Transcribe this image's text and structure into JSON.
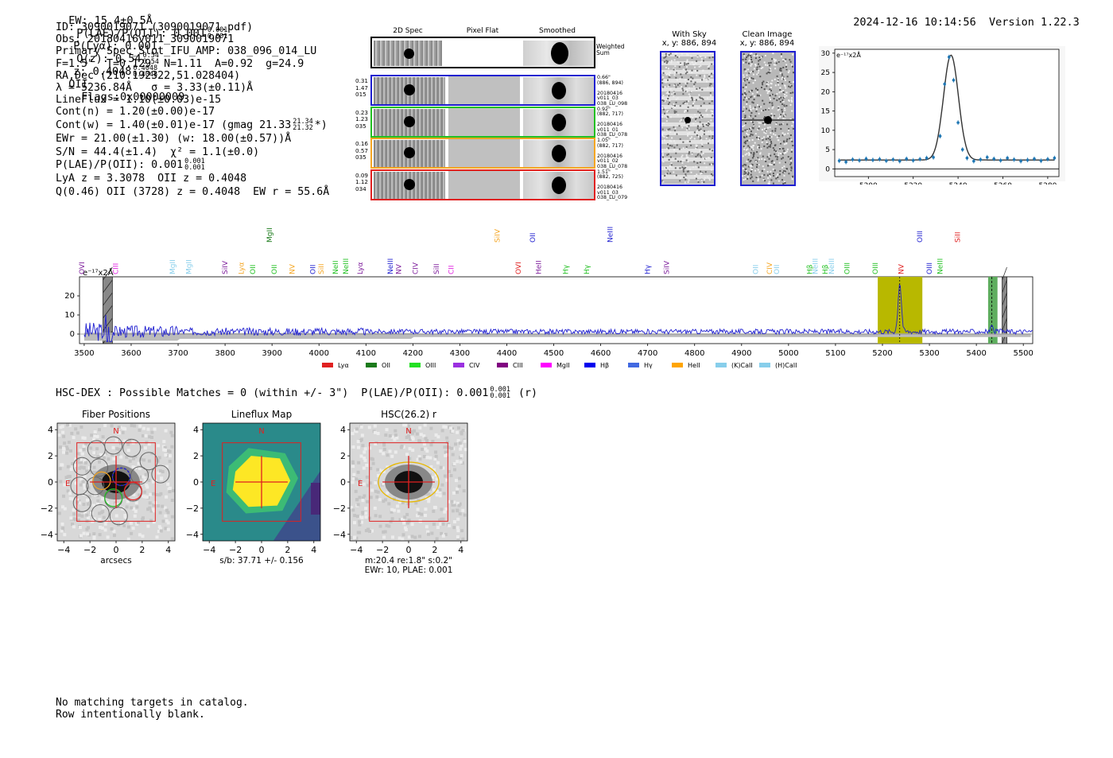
{
  "header": {
    "ew": "EW: 15.4±0.5Å",
    "plae_label": "P(LAE)/P(OII): 0.001",
    "plae_sup": "0.001",
    "plae_sub": "0.001",
    "plya": "P(Lyα): 0.001",
    "qz_label": "Q(z): 0.54",
    "qz_sup": "0.54",
    "qz_sub": "0.54",
    "z_label": "z: 0.4048",
    "z_sup": "0.4048",
    "z_sub": "0.4048",
    "z_line": "OII",
    "flags": "Flags:0x00000009",
    "timestamp": "2024-12-16 10:14:56",
    "version": "Version 1.22.3"
  },
  "info": {
    "id": "ID: 3090019071 (3090019071.pdf)",
    "obs": "Obs: 20180416v011_3090019071",
    "primary": "Primary Spec_Slot_IFU_AMP: 038_096_014_LU",
    "fiber": "F=1.5\"  T=0.129  N=1.11  A=0.92  g=24.9",
    "radec": "RA,Dec (210.192322,51.028404)",
    "lambda": "λ = 5236.84Å   σ = 3.33(±0.11)Å",
    "lineflux": "LineFlux = 1.10(±0.03)e-15",
    "contn": "Cont(n) = 1.20(±0.00)e-17",
    "contw": "Cont(w) = 1.40(±0.01)e-17 (gmag 21.33",
    "contw_sup": "21.34",
    "contw_sub": "21.32",
    "contw_end": "*)",
    "ewr": "EWr = 21.00(±1.30) (w: 18.00(±0.57))Å",
    "sn": "S/N = 44.4(±1.4)  χ² = 1.1(±0.0)",
    "plae": "P(LAE)/P(OII): 0.001",
    "plae_sup": "0.001",
    "plae_sub": "0.001",
    "lya": "LyA z = 3.3078  OII z = 0.4048",
    "q": "Q(0.46) OII (3728) z = 0.4048  EW r = 55.6Å"
  },
  "cutouts": {
    "col_titles": [
      "2D Spec",
      "Pixel Flat",
      "Smoothed"
    ],
    "weighted_label": "Weighted\nSum",
    "rows": [
      {
        "left": "0.31\n1.47\n015",
        "right": "0.66\"\n(886, 894)\n\n20180416\nv011_03\n038_LU_098",
        "color": "#1f1fd0"
      },
      {
        "left": "0.23\n1.23\n035",
        "right": "0.92\"\n(882, 717)\n\n20180416\nv011_01\n038_LU_078",
        "color": "#22c022"
      },
      {
        "left": "0.16\n0.57\n035",
        "right": "1.05\"\n(882, 717)\n\n20180416\nv011_02\n038_LU_078",
        "color": "#f5a623"
      },
      {
        "left": "0.09\n1.12\n034",
        "right": "1.51\"\n(882, 725)\n\n20180416\nv011_03\n038_LU_079",
        "color": "#e02020"
      }
    ]
  },
  "sky": {
    "with_sky_title": "With Sky",
    "with_sky_xy": "x, y: 886, 894",
    "clean_title": "Clean Image",
    "clean_xy": "x, y: 886, 894"
  },
  "fit_chart": {
    "ylabel": "e⁻¹⁷x2Å",
    "xticks": [
      "5200",
      "5220",
      "5240",
      "5260",
      "5280"
    ],
    "yticks": [
      "30",
      "25",
      "20",
      "15",
      "10",
      "5",
      "0"
    ]
  },
  "spectrum": {
    "ylabel": "e⁻¹⁷x2Å",
    "xticks": [
      "3500",
      "3600",
      "3700",
      "3800",
      "3900",
      "4000",
      "4100",
      "4200",
      "4300",
      "4400",
      "4500",
      "4600",
      "4700",
      "4800",
      "4900",
      "5000",
      "5100",
      "5200",
      "5300",
      "5400",
      "5500"
    ],
    "yticks": [
      "20",
      "10",
      "0"
    ],
    "line_labels": [
      {
        "t": "OVI",
        "c": "#7e1e9c"
      },
      {
        "t": "CIII",
        "c": "#e020e0"
      },
      {
        "t": "MgII",
        "c": "#87ceeb"
      },
      {
        "t": "MgII",
        "c": "#87ceeb"
      },
      {
        "t": "SiIV",
        "c": "#7e1e9c"
      },
      {
        "t": "Lyα",
        "c": "#f5a623"
      },
      {
        "t": "OII",
        "c": "#22c022"
      },
      {
        "t": "MgII",
        "c": "#1a7a1a"
      },
      {
        "t": "OII",
        "c": "#22c022"
      },
      {
        "t": "NV",
        "c": "#f5a623"
      },
      {
        "t": "OII",
        "c": "#1f1fd0"
      },
      {
        "t": "SiII",
        "c": "#f5a623"
      },
      {
        "t": "NeII",
        "c": "#22c022"
      },
      {
        "t": "NeIII",
        "c": "#22c022"
      },
      {
        "t": "Lyα",
        "c": "#7e1e9c"
      },
      {
        "t": "NeIII",
        "c": "#1f1fd0"
      },
      {
        "t": "NV",
        "c": "#7e1e9c"
      },
      {
        "t": "CIV",
        "c": "#7e1e9c"
      },
      {
        "t": "SiII",
        "c": "#7e1e9c"
      },
      {
        "t": "CII",
        "c": "#e020e0"
      },
      {
        "t": "SiIV",
        "c": "#f5a623"
      },
      {
        "t": "OVI",
        "c": "#e02020"
      },
      {
        "t": "OII",
        "c": "#1f1fd0"
      },
      {
        "t": "HeII",
        "c": "#7e1e9c"
      },
      {
        "t": "Hγ",
        "c": "#22c022"
      },
      {
        "t": "Hγ",
        "c": "#22c022"
      },
      {
        "t": "NeIII",
        "c": "#1f1fd0"
      },
      {
        "t": "Hγ",
        "c": "#1f1fd0"
      },
      {
        "t": "SiIV",
        "c": "#7e1e9c"
      },
      {
        "t": "OII",
        "c": "#87ceeb"
      },
      {
        "t": "CIV",
        "c": "#f5a623"
      },
      {
        "t": "OII",
        "c": "#87ceeb"
      },
      {
        "t": "Hβ",
        "c": "#22c022"
      },
      {
        "t": "NeIII",
        "c": "#87ceeb"
      },
      {
        "t": "Hβ",
        "c": "#22c022"
      },
      {
        "t": "NeIII",
        "c": "#87ceeb"
      },
      {
        "t": "OIII",
        "c": "#22c022"
      },
      {
        "t": "OIII",
        "c": "#22c022"
      },
      {
        "t": "NV",
        "c": "#e02020"
      },
      {
        "t": "OIII",
        "c": "#1f1fd0"
      },
      {
        "t": "OIII",
        "c": "#1f1fd0"
      },
      {
        "t": "NeIII",
        "c": "#22c022"
      },
      {
        "t": "SiII",
        "c": "#e02020"
      }
    ],
    "legend": [
      {
        "t": "Lyα",
        "c": "#e02020"
      },
      {
        "t": "OII",
        "c": "#1a7a1a"
      },
      {
        "t": "OIII",
        "c": "#22e022"
      },
      {
        "t": "CIV",
        "c": "#9b30e0"
      },
      {
        "t": "CIII",
        "c": "#800080"
      },
      {
        "t": "MgII",
        "c": "#ff00ff"
      },
      {
        "t": "Hβ",
        "c": "#0000ee"
      },
      {
        "t": "Hγ",
        "c": "#4169e1"
      },
      {
        "t": "HeII",
        "c": "#ffa500"
      },
      {
        "t": "(K)CaII",
        "c": "#87ceeb"
      },
      {
        "t": "(H)CaII",
        "c": "#87ceeb"
      }
    ]
  },
  "chart_data": [
    {
      "type": "line",
      "title": "Emission line fit",
      "ylabel": "e⁻¹⁷x2Å",
      "xlim": [
        5185,
        5285
      ],
      "ylim": [
        -2,
        31
      ],
      "x": [
        5187,
        5190,
        5193,
        5196,
        5199,
        5202,
        5205,
        5208,
        5211,
        5214,
        5217,
        5220,
        5223,
        5226,
        5229,
        5232,
        5234,
        5236,
        5238,
        5240,
        5242,
        5244,
        5247,
        5250,
        5253,
        5256,
        5259,
        5262,
        5265,
        5268,
        5271,
        5274,
        5277,
        5280,
        5283
      ],
      "y": [
        2.1,
        1.8,
        2.4,
        2.2,
        2.6,
        2.3,
        2.5,
        2.1,
        2.4,
        2.0,
        2.6,
        2.2,
        2.5,
        2.8,
        3.0,
        8.5,
        22.0,
        29.0,
        23.0,
        12.0,
        5.0,
        2.8,
        2.0,
        2.4,
        3.0,
        2.6,
        2.2,
        2.8,
        2.4,
        2.0,
        2.3,
        2.6,
        2.1,
        2.5,
        2.8
      ],
      "fit_peak": 29.5,
      "fit_center": 5236.84,
      "fit_sigma": 3.33
    },
    {
      "type": "line",
      "title": "Full spectrum",
      "ylabel": "e⁻¹⁷x2Å",
      "xlim": [
        3490,
        5520
      ],
      "ylim": [
        -5,
        30
      ],
      "continuum": 1.3,
      "line_center": 5236.84,
      "line_peak": 26,
      "highlight_bands": [
        [
          5190,
          5285
        ],
        [
          5425,
          5445
        ]
      ],
      "masked_bands": [
        [
          3540,
          3560
        ],
        [
          5455,
          5465
        ]
      ]
    }
  ],
  "hsc": {
    "header": "HSC-DEX : Possible Matches = 0 (within +/- 3\")  P(LAE)/P(OII): 0.001",
    "header_sup": "0.001",
    "header_sub": "0.001",
    "header_end": "(r)",
    "panel1_title": "Fiber Positions",
    "panel1_xlabel": "arcsecs",
    "panel2_title": "Lineflux Map",
    "panel2_xlabel": "s/b: 37.71 +/- 0.156",
    "panel3_title": "HSC(26.2) r",
    "panel3_line1": "m:20.4  re:1.8\"  s:0.2\"",
    "panel3_line2": "EWr: 10, PLAE: 0.001",
    "north": "N",
    "east": "E",
    "ticks": [
      "4",
      "2",
      "0",
      "−2",
      "−4"
    ],
    "xticks": [
      "−4",
      "−2",
      "0",
      "2",
      "4"
    ]
  },
  "footer": {
    "line1": "No matching targets in catalog.",
    "line2": "Row intentionally blank."
  }
}
